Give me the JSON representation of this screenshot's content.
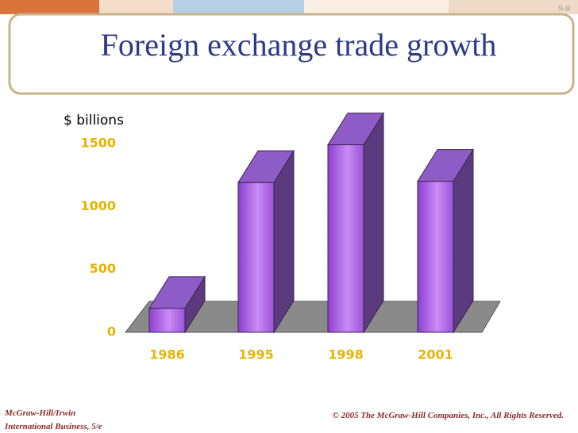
{
  "header": {
    "slide_number": "9-8",
    "title": "Foreign exchange trade growth"
  },
  "chart_data": {
    "type": "bar3d",
    "y_axis_label": "$ billions",
    "categories": [
      "1986",
      "1995",
      "1998",
      "2001"
    ],
    "values": [
      190,
      1190,
      1490,
      1200
    ],
    "color": "#a45ee0",
    "ylim": [
      0,
      1500
    ],
    "yticks": [
      0,
      500,
      1000,
      1500
    ],
    "grid": false
  },
  "footer": {
    "publisher": "McGraw-Hill/Irwin",
    "book": "International Business, 5/e",
    "copyright": "© 2005 The McGraw-Hill Companies, Inc., All Rights Reserved."
  }
}
